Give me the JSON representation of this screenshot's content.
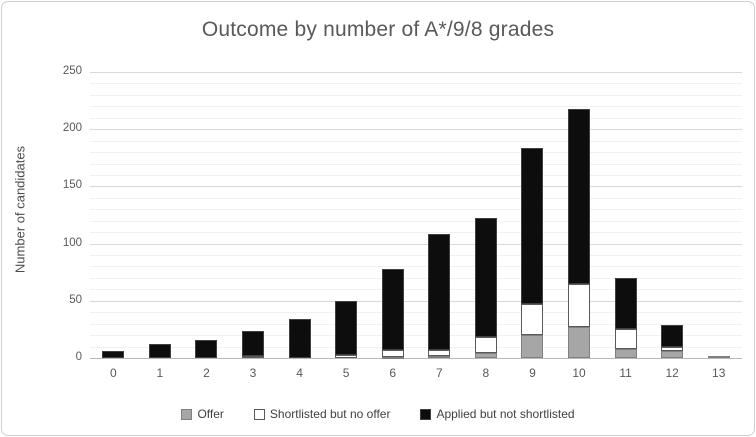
{
  "chart_data": {
    "type": "bar",
    "stacked": true,
    "title": "Outcome by number of A*/9/8 grades",
    "xlabel": "",
    "ylabel": "Number of candidates",
    "categories": [
      "0",
      "1",
      "2",
      "3",
      "4",
      "5",
      "6",
      "7",
      "8",
      "9",
      "10",
      "11",
      "12",
      "13"
    ],
    "series": [
      {
        "name": "Offer",
        "fill": "#a6a6a6",
        "border": "#7f7f7f",
        "values": [
          0,
          0,
          0,
          0,
          0,
          0,
          1,
          2,
          4,
          20,
          27,
          8,
          6,
          2
        ]
      },
      {
        "name": "Shortlisted but no offer",
        "fill": "#ffffff",
        "border": "#595959",
        "values": [
          0,
          0,
          0,
          2,
          0,
          3,
          6,
          5,
          14,
          27,
          38,
          17,
          4,
          0
        ]
      },
      {
        "name": "Applied but not shortlisted",
        "fill": "#0d0d0d",
        "border": "#404040",
        "values": [
          6,
          12,
          16,
          22,
          34,
          47,
          71,
          101,
          104,
          137,
          153,
          45,
          19,
          0
        ]
      }
    ],
    "stack_totals": [
      6,
      12,
      16,
      24,
      34,
      50,
      78,
      108,
      122,
      184,
      218,
      70,
      29,
      2
    ],
    "ylim": [
      0,
      250
    ],
    "yticks": [
      0,
      50,
      100,
      150,
      200,
      250
    ],
    "minor_grid_step": 10,
    "grid": true,
    "legend_position": "bottom"
  }
}
